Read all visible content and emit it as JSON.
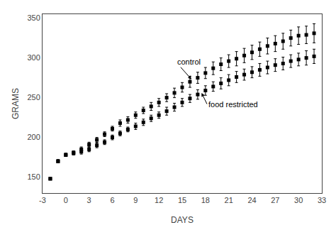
{
  "chart_data": {
    "type": "scatter",
    "x": [
      -2,
      -1,
      0,
      1,
      2,
      3,
      4,
      5,
      6,
      7,
      8,
      9,
      10,
      11,
      12,
      13,
      14,
      15,
      16,
      17,
      18,
      19,
      20,
      21,
      22,
      23,
      24,
      25,
      26,
      27,
      28,
      29,
      30,
      31,
      32
    ],
    "series": [
      {
        "color": "#000000",
        "marker": "square",
        "values": [
          148,
          170,
          178,
          181,
          185,
          191,
          197,
          204,
          211,
          218,
          222,
          228,
          234,
          239,
          244,
          250,
          256,
          263,
          270,
          275,
          281,
          287,
          292,
          296,
          299,
          303,
          307,
          311,
          315,
          318,
          321,
          325,
          328,
          329,
          331
        ],
        "error": [
          1,
          2,
          2,
          2,
          3,
          3,
          3,
          3,
          3,
          4,
          4,
          4,
          4,
          5,
          5,
          5,
          6,
          6,
          7,
          7,
          7,
          8,
          8,
          8,
          9,
          9,
          9,
          9,
          10,
          10,
          10,
          10,
          11,
          11,
          12
        ]
      },
      {
        "color": "#000000",
        "marker": "square",
        "values": [
          148,
          170,
          178,
          180,
          182,
          185,
          190,
          194,
          200,
          205,
          210,
          214,
          219,
          224,
          228,
          233,
          238,
          244,
          249,
          254,
          259,
          264,
          268,
          272,
          276,
          279,
          282,
          285,
          288,
          291,
          293,
          296,
          298,
          300,
          302
        ],
        "error": [
          1,
          2,
          2,
          2,
          3,
          3,
          3,
          3,
          3,
          3,
          3,
          4,
          4,
          4,
          4,
          5,
          5,
          5,
          5,
          6,
          6,
          6,
          7,
          7,
          7,
          7,
          7,
          8,
          8,
          8,
          8,
          8,
          8,
          9,
          9
        ]
      }
    ],
    "annotations": [
      {
        "text": "control",
        "x": 16.2,
        "y": 273,
        "text_x": 14.2,
        "text_y": 295
      },
      {
        "text": "food restricted",
        "x": 17.5,
        "y": 256,
        "text_x": 18.2,
        "text_y": 242
      }
    ],
    "xlabel": "DAYS",
    "ylabel": "GRAMS",
    "xlim": [
      -3,
      33
    ],
    "ylim": [
      130,
      355
    ],
    "xticks": [
      -3,
      0,
      3,
      6,
      9,
      12,
      15,
      18,
      21,
      24,
      27,
      30,
      33
    ],
    "yticks": [
      150,
      200,
      250,
      300,
      350
    ],
    "grid": false
  }
}
